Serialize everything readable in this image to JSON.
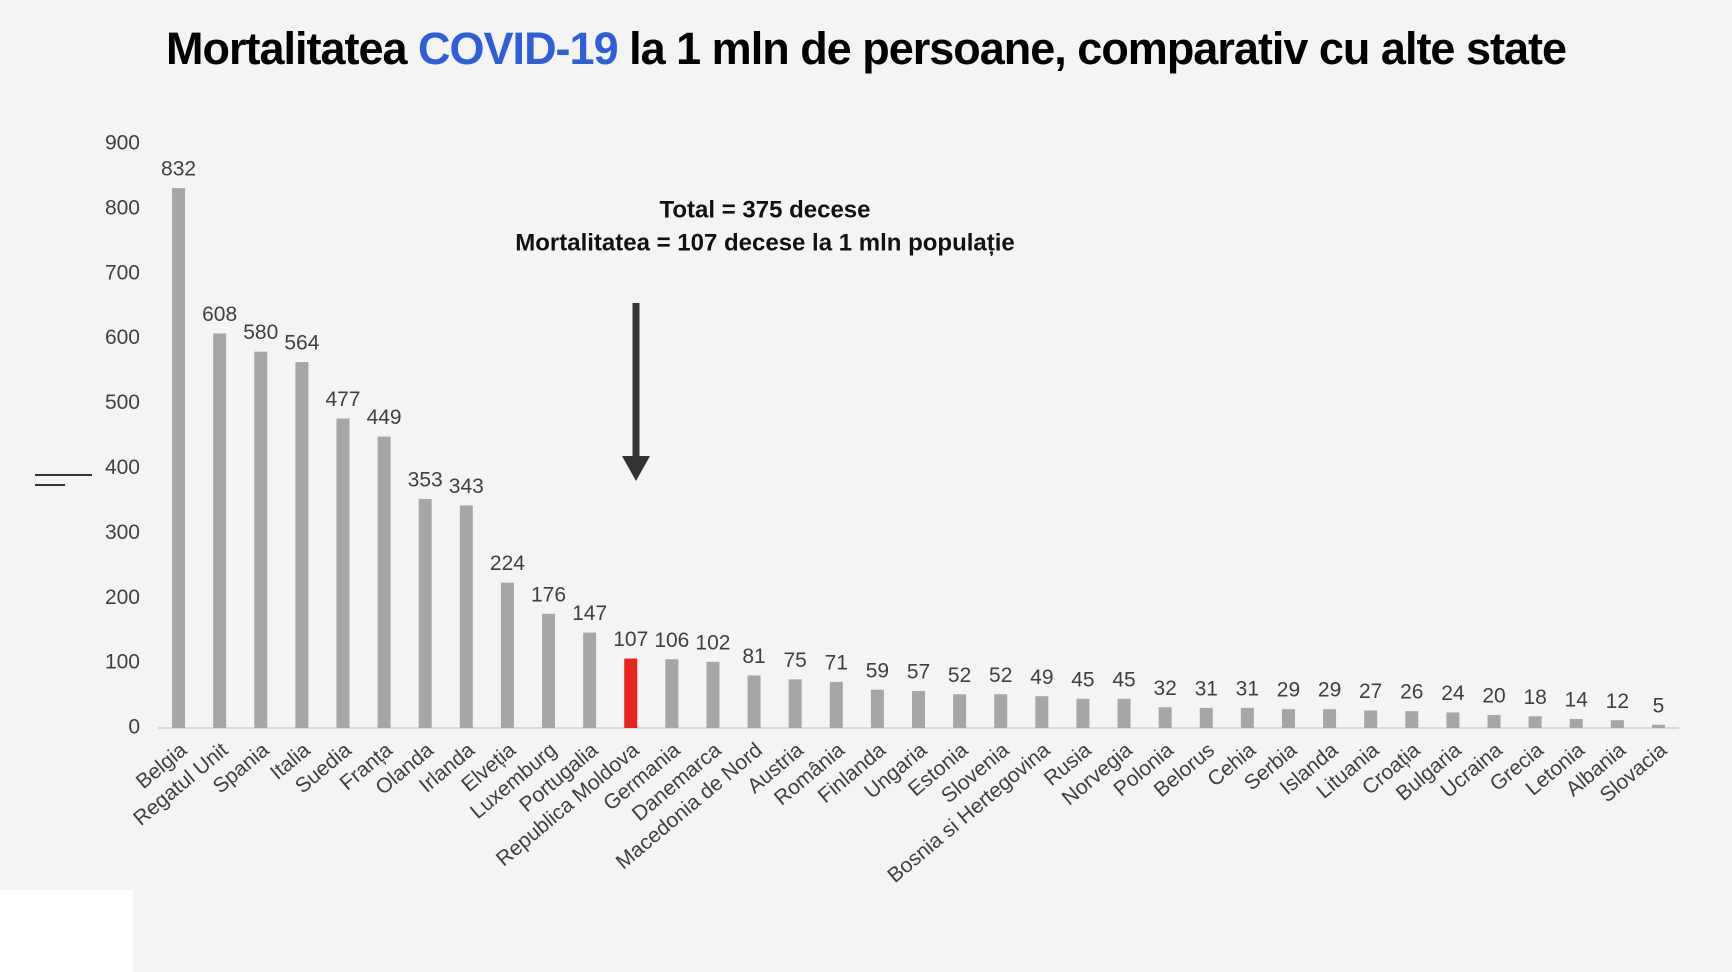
{
  "chart_data": {
    "type": "bar",
    "title": [
      "Mortalitatea",
      "COVID-19",
      "la 1 mln de persoane, comparativ cu alte state"
    ],
    "title_colors": [
      "#000000",
      "#2f5fd8",
      "#000000"
    ],
    "annotations": [
      "Total = 375 decese",
      "Mortalitatea = 107 decese la 1 mln populație"
    ],
    "categories": [
      "Belgia",
      "Regatul Unit",
      "Spania",
      "Italia",
      "Suedia",
      "Franța",
      "Olanda",
      "Irlanda",
      "Elveția",
      "Luxemburg",
      "Portugalia",
      "Republica Moldova",
      "Germania",
      "Danemarca",
      "Macedonia de Nord",
      "Austria",
      "România",
      "Finlanda",
      "Ungaria",
      "Estonia",
      "Slovenia",
      "Bosnia si Hertegovina",
      "Rusia",
      "Norvegia",
      "Polonia",
      "Belorus",
      "Cehia",
      "Serbia",
      "Islanda",
      "Lituania",
      "Croația",
      "Bulgaria",
      "Ucraina",
      "Grecia",
      "Letonia",
      "Albania",
      "Slovacia"
    ],
    "values": [
      832,
      608,
      580,
      564,
      477,
      449,
      353,
      343,
      224,
      176,
      147,
      107,
      106,
      102,
      81,
      75,
      71,
      59,
      57,
      52,
      52,
      49,
      45,
      45,
      32,
      31,
      31,
      29,
      29,
      27,
      26,
      24,
      20,
      18,
      14,
      12,
      5
    ],
    "colors": [
      "#a6a6a6",
      "#a6a6a6",
      "#a6a6a6",
      "#a6a6a6",
      "#a6a6a6",
      "#a6a6a6",
      "#a6a6a6",
      "#a6a6a6",
      "#a6a6a6",
      "#a6a6a6",
      "#a6a6a6",
      "#e8251c",
      "#a6a6a6",
      "#a6a6a6",
      "#a6a6a6",
      "#a6a6a6",
      "#a6a6a6",
      "#a6a6a6",
      "#a6a6a6",
      "#a6a6a6",
      "#a6a6a6",
      "#a6a6a6",
      "#a6a6a6",
      "#a6a6a6",
      "#a6a6a6",
      "#a6a6a6",
      "#a6a6a6",
      "#a6a6a6",
      "#a6a6a6",
      "#a6a6a6",
      "#a6a6a6",
      "#a6a6a6",
      "#a6a6a6",
      "#a6a6a6",
      "#a6a6a6",
      "#a6a6a6",
      "#a6a6a6"
    ],
    "ylim": [
      0,
      900
    ],
    "yticks": [
      0,
      100,
      200,
      300,
      400,
      500,
      600,
      700,
      800,
      900
    ],
    "grid": false
  }
}
